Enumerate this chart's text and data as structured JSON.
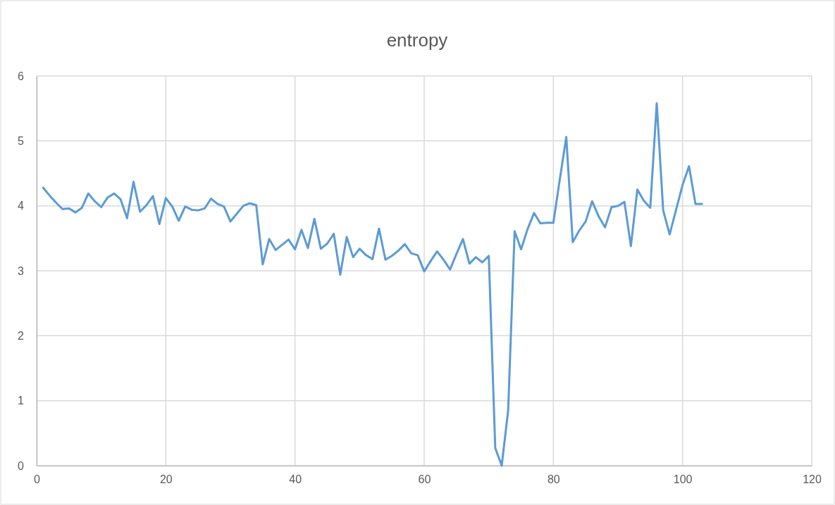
{
  "chart_data": {
    "type": "line",
    "title": "entropy",
    "x": [
      1,
      2,
      3,
      4,
      5,
      6,
      7,
      8,
      9,
      10,
      11,
      12,
      13,
      14,
      15,
      16,
      17,
      18,
      19,
      20,
      21,
      22,
      23,
      24,
      25,
      26,
      27,
      28,
      29,
      30,
      31,
      32,
      33,
      34,
      35,
      36,
      37,
      38,
      39,
      40,
      41,
      42,
      43,
      44,
      45,
      46,
      47,
      48,
      49,
      50,
      51,
      52,
      53,
      54,
      55,
      56,
      57,
      58,
      59,
      60,
      61,
      62,
      63,
      64,
      65,
      66,
      67,
      68,
      69,
      70,
      71,
      72,
      73,
      74,
      75,
      76,
      77,
      78,
      79,
      80,
      81,
      82,
      83,
      84,
      85,
      86,
      87,
      88,
      89,
      90,
      91,
      92,
      93,
      94,
      95,
      96,
      97,
      98,
      99,
      100,
      101,
      102,
      103
    ],
    "series": [
      {
        "color": "#5b9bd5",
        "values": [
          4.28,
          4.16,
          4.05,
          3.95,
          3.96,
          3.9,
          3.97,
          4.19,
          4.07,
          3.98,
          4.13,
          4.19,
          4.1,
          3.81,
          4.37,
          3.91,
          4.01,
          4.15,
          3.72,
          4.12,
          3.99,
          3.77,
          3.99,
          3.94,
          3.93,
          3.96,
          4.11,
          4.03,
          3.99,
          3.76,
          3.88,
          4.0,
          4.04,
          4.01,
          3.1,
          3.49,
          3.32,
          3.4,
          3.48,
          3.33,
          3.63,
          3.35,
          3.8,
          3.34,
          3.42,
          3.57,
          2.94,
          3.52,
          3.21,
          3.34,
          3.24,
          3.18,
          3.65,
          3.17,
          3.23,
          3.31,
          3.41,
          3.27,
          3.24,
          2.99,
          3.15,
          3.3,
          3.17,
          3.02,
          3.26,
          3.49,
          3.11,
          3.21,
          3.13,
          3.23,
          0.27,
          0.0,
          0.85,
          3.61,
          3.33,
          3.64,
          3.89,
          3.73,
          3.74,
          3.74,
          4.41,
          5.06,
          3.44,
          3.62,
          3.76,
          4.07,
          3.84,
          3.67,
          3.98,
          4.0,
          4.06,
          3.38,
          4.25,
          4.08,
          3.97,
          5.58,
          3.93,
          3.56,
          3.94,
          4.32,
          4.61,
          4.03,
          4.03
        ]
      }
    ],
    "xlim": [
      0,
      120
    ],
    "xticks": [
      0,
      20,
      40,
      60,
      80,
      100,
      120
    ],
    "ylim": [
      0,
      6
    ],
    "yticks": [
      0,
      1,
      2,
      3,
      4,
      5,
      6
    ],
    "grid": true,
    "marker": "none",
    "line_style": "solid"
  }
}
